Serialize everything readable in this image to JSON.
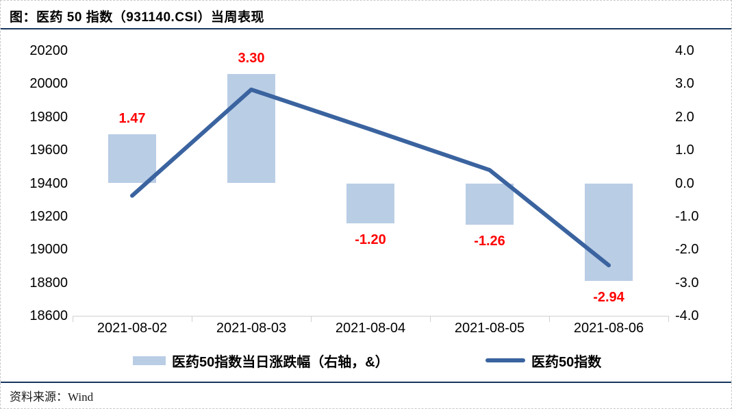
{
  "title": "图：医药 50 指数（931140.CSI）当周表现",
  "source_note": "资料来源：Wind",
  "colors": {
    "bar_fill": "#b9cde5",
    "line_stroke": "#3a639f",
    "value_label": "#ff0000",
    "rule": "#17365d",
    "axis_line": "#d0d0d0",
    "text": "#000000"
  },
  "legend": {
    "bar_label": "医药50指数当日涨跌幅（右轴，&）",
    "line_label": "医药50指数"
  },
  "chart_data": {
    "type": "combo_bar_line",
    "categories": [
      "2021-08-02",
      "2021-08-03",
      "2021-08-04",
      "2021-08-05",
      "2021-08-06"
    ],
    "series": [
      {
        "name": "医药50指数当日涨跌幅（右轴，&）",
        "type": "bar",
        "axis": "right",
        "values": [
          1.47,
          3.3,
          -1.2,
          -1.26,
          -2.94
        ],
        "data_labels": [
          "1.47",
          "3.30",
          "-1.20",
          "-1.26",
          "-2.94"
        ]
      },
      {
        "name": "医药50指数",
        "type": "line",
        "axis": "left",
        "values": [
          19325,
          19965,
          19725,
          19480,
          18905
        ]
      }
    ],
    "left_axis": {
      "min": 18600,
      "max": 20200,
      "step": 200,
      "ticks": [
        "20200",
        "20000",
        "19800",
        "19600",
        "19400",
        "19200",
        "19000",
        "18800",
        "18600"
      ]
    },
    "right_axis": {
      "min": -4.0,
      "max": 4.0,
      "step": 1.0,
      "ticks": [
        "4.0",
        "3.0",
        "2.0",
        "1.0",
        "0.0",
        "-1.0",
        "-2.0",
        "-3.0",
        "-4.0"
      ]
    },
    "grid": false,
    "legend_position": "bottom",
    "data_label_color": "#ff0000"
  }
}
